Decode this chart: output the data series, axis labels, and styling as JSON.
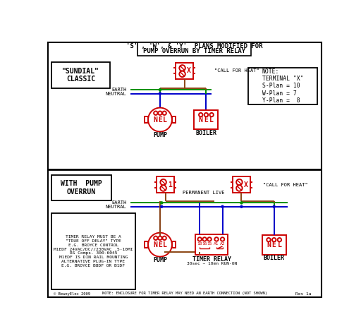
{
  "title_line1": "'S' , 'W', & 'Y'  PLANS MODIFIED FOR",
  "title_line2": "PUMP OVERRUN BY TIMER RELAY",
  "bg_color": "#ffffff",
  "red": "#cc0000",
  "green": "#009000",
  "blue": "#0000cc",
  "brown": "#8B4513",
  "black": "#000000",
  "white": "#ffffff",
  "note_top": "NOTE:\nTERMINAL \"X\"\nS-Plan = 10\nW-Plan = 7\nY-Plan =  8",
  "note_bottom_label": "TIMER RELAY MUST BE A\n\"TRUE OFF DELAY\" TYPE\nE.G. BROYCE CONTROL\nM1EDF 24VAC/DC//230VAC .5-10MI\nRS Comps. 300-6045\nM1EDF IS DIN RAIL MOUNTING\nALTERNATIVE PLUG-IN TYPE\nE.G. BROYCE B8DF OR B1DF",
  "bottom_note": "NOTE: ENCLOSURE FOR TIMER RELAY MAY NEED AN EARTH CONNECTION (NOT SHOWN)",
  "rev_note": "Rev 1a",
  "timer_note": "30sec ~ 10mn RUN-ON",
  "byline": "© BeweyElec 2009"
}
